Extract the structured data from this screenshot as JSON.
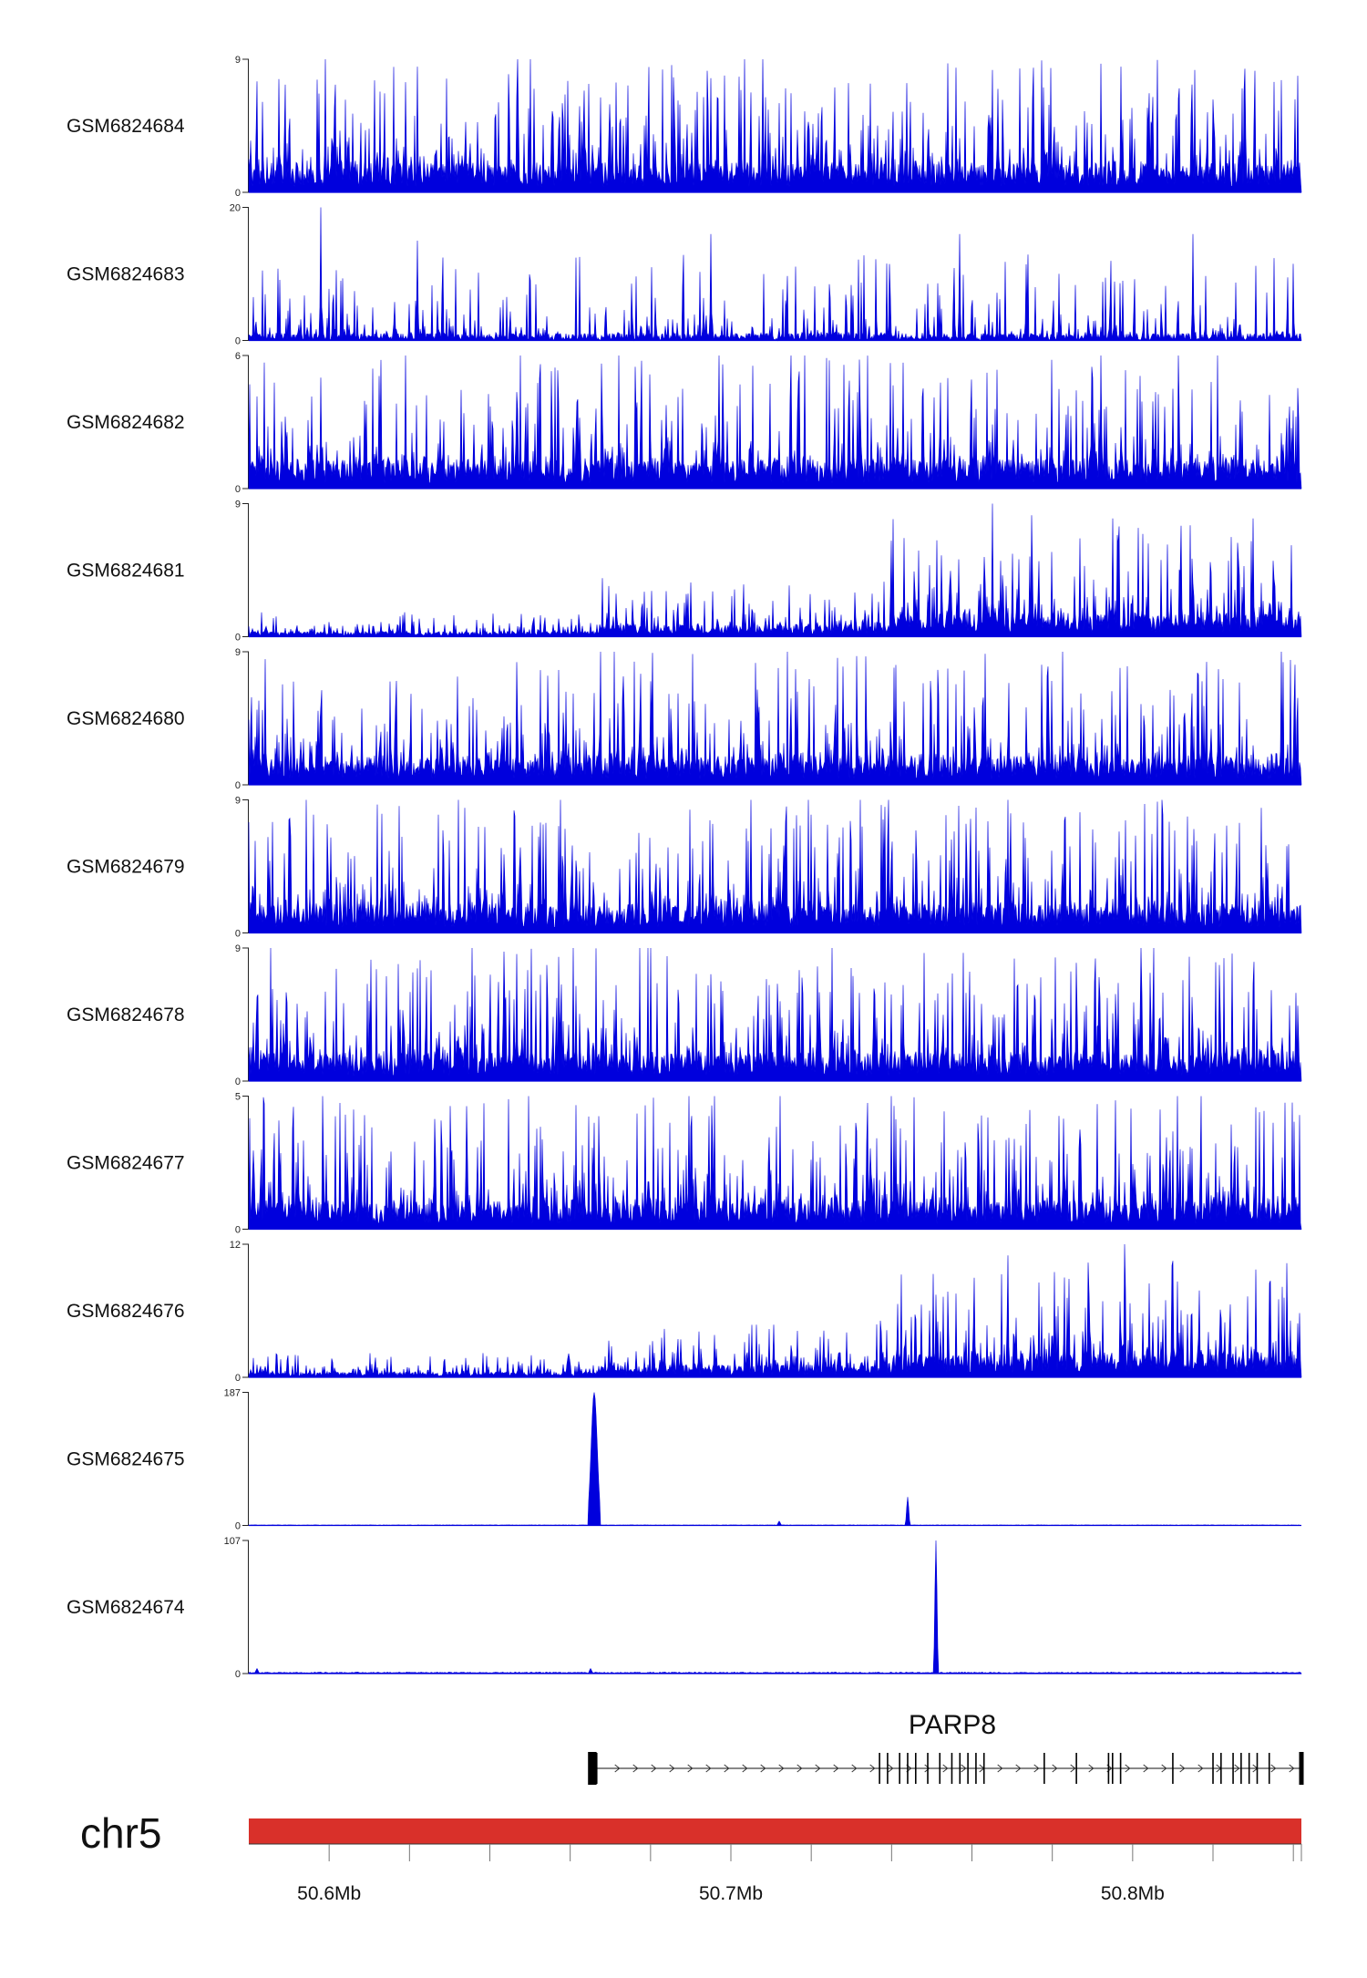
{
  "chart_data": {
    "type": "area",
    "chromosome": "chr5",
    "x_range_mb": [
      50.58,
      50.842
    ],
    "x_ticks_mb": [
      50.6,
      50.7,
      50.8
    ],
    "x_tick_labels": [
      "50.6Mb",
      "50.7Mb",
      "50.8Mb"
    ],
    "series_color": "#0000dd",
    "tracks": [
      {
        "name": "GSM6824684",
        "ymin_label": "0",
        "ymax_label": "9",
        "ymax": 9,
        "profile": "noisy",
        "base": 0.1,
        "peaks": [
          [
            50.599,
            9
          ],
          [
            50.622,
            8.5
          ],
          [
            50.651,
            7
          ],
          [
            50.708,
            9
          ],
          [
            50.797,
            8.5
          ]
        ]
      },
      {
        "name": "GSM6824683",
        "ymin_label": "0",
        "ymax_label": "20",
        "ymax": 20,
        "profile": "sparse",
        "base": 0.08,
        "peaks": [
          [
            50.598,
            20
          ],
          [
            50.622,
            15
          ],
          [
            50.695,
            16
          ],
          [
            50.757,
            16
          ],
          [
            50.815,
            16
          ]
        ]
      },
      {
        "name": "GSM6824682",
        "ymin_label": "0",
        "ymax_label": "6",
        "ymax": 6,
        "profile": "noisy",
        "base": 0.15,
        "peaks": [
          [
            50.598,
            5
          ],
          [
            50.697,
            6
          ],
          [
            50.715,
            6
          ],
          [
            50.688,
            4.5
          ],
          [
            50.81,
            4.5
          ]
        ]
      },
      {
        "name": "GSM6824681",
        "ymin_label": "0",
        "ymax_label": "9",
        "ymax": 9,
        "profile": "rising",
        "base": 0.12,
        "peaks": [
          [
            50.765,
            9
          ],
          [
            50.795,
            8
          ],
          [
            50.83,
            8
          ],
          [
            50.812,
            7.5
          ],
          [
            50.74,
            6.5
          ]
        ]
      },
      {
        "name": "GSM6824680",
        "ymin_label": "0",
        "ymax_label": "9",
        "ymax": 9,
        "profile": "noisy",
        "base": 0.12,
        "peaks": [
          [
            50.584,
            8.5
          ],
          [
            50.728,
            8
          ],
          [
            50.779,
            8
          ],
          [
            50.837,
            9
          ],
          [
            50.68,
            7
          ]
        ]
      },
      {
        "name": "GSM6824679",
        "ymin_label": "0",
        "ymax_label": "9",
        "ymax": 9,
        "profile": "noisy",
        "base": 0.1,
        "peaks": [
          [
            50.596,
            8
          ],
          [
            50.705,
            9
          ],
          [
            50.72,
            8
          ],
          [
            50.79,
            7
          ],
          [
            50.586,
            7.5
          ]
        ]
      },
      {
        "name": "GSM6824678",
        "ymin_label": "0",
        "ymax_label": "9",
        "ymax": 9,
        "profile": "noisy",
        "base": 0.1,
        "peaks": [
          [
            50.717,
            7.5
          ],
          [
            50.786,
            8
          ],
          [
            50.802,
            9
          ],
          [
            50.64,
            7.2
          ],
          [
            50.83,
            6.6
          ]
        ]
      },
      {
        "name": "GSM6824677",
        "ymin_label": "0",
        "ymax_label": "5",
        "ymax": 5,
        "profile": "noisy",
        "base": 0.15,
        "peaks": [
          [
            50.696,
            5
          ],
          [
            50.666,
            4
          ],
          [
            50.764,
            4.2
          ],
          [
            50.835,
            4
          ],
          [
            50.591,
            3.8
          ]
        ]
      },
      {
        "name": "GSM6824676",
        "ymin_label": "0",
        "ymax_label": "12",
        "ymax": 12,
        "profile": "rising",
        "base": 0.1,
        "peaks": [
          [
            50.798,
            12
          ],
          [
            50.769,
            11
          ],
          [
            50.81,
            10.5
          ],
          [
            50.834,
            8.5
          ],
          [
            50.783,
            9
          ]
        ]
      },
      {
        "name": "GSM6824675",
        "ymin_label": "0",
        "ymax_label": "187",
        "ymax": 187,
        "profile": "peaks",
        "base": 0.004,
        "peaks": [
          [
            50.666,
            187
          ],
          [
            50.744,
            40
          ],
          [
            50.712,
            6
          ]
        ]
      },
      {
        "name": "GSM6824674",
        "ymin_label": "0",
        "ymax_label": "107",
        "ymax": 107,
        "profile": "peaks",
        "base": 0.01,
        "peaks": [
          [
            50.751,
            107
          ],
          [
            50.665,
            4
          ],
          [
            50.582,
            4
          ]
        ]
      }
    ],
    "gene": {
      "name": "PARP8",
      "start_mb": 50.665,
      "end_mb": 50.842,
      "strand": "+",
      "exons_mb": [
        50.665,
        50.6656,
        50.666,
        50.6666,
        50.737,
        50.739,
        50.742,
        50.744,
        50.746,
        50.749,
        50.752,
        50.755,
        50.757,
        50.759,
        50.761,
        50.763,
        50.778,
        50.786,
        50.794,
        50.795,
        50.797,
        50.81,
        50.82,
        50.822,
        50.825,
        50.827,
        50.829,
        50.831,
        50.834,
        50.842
      ]
    }
  }
}
